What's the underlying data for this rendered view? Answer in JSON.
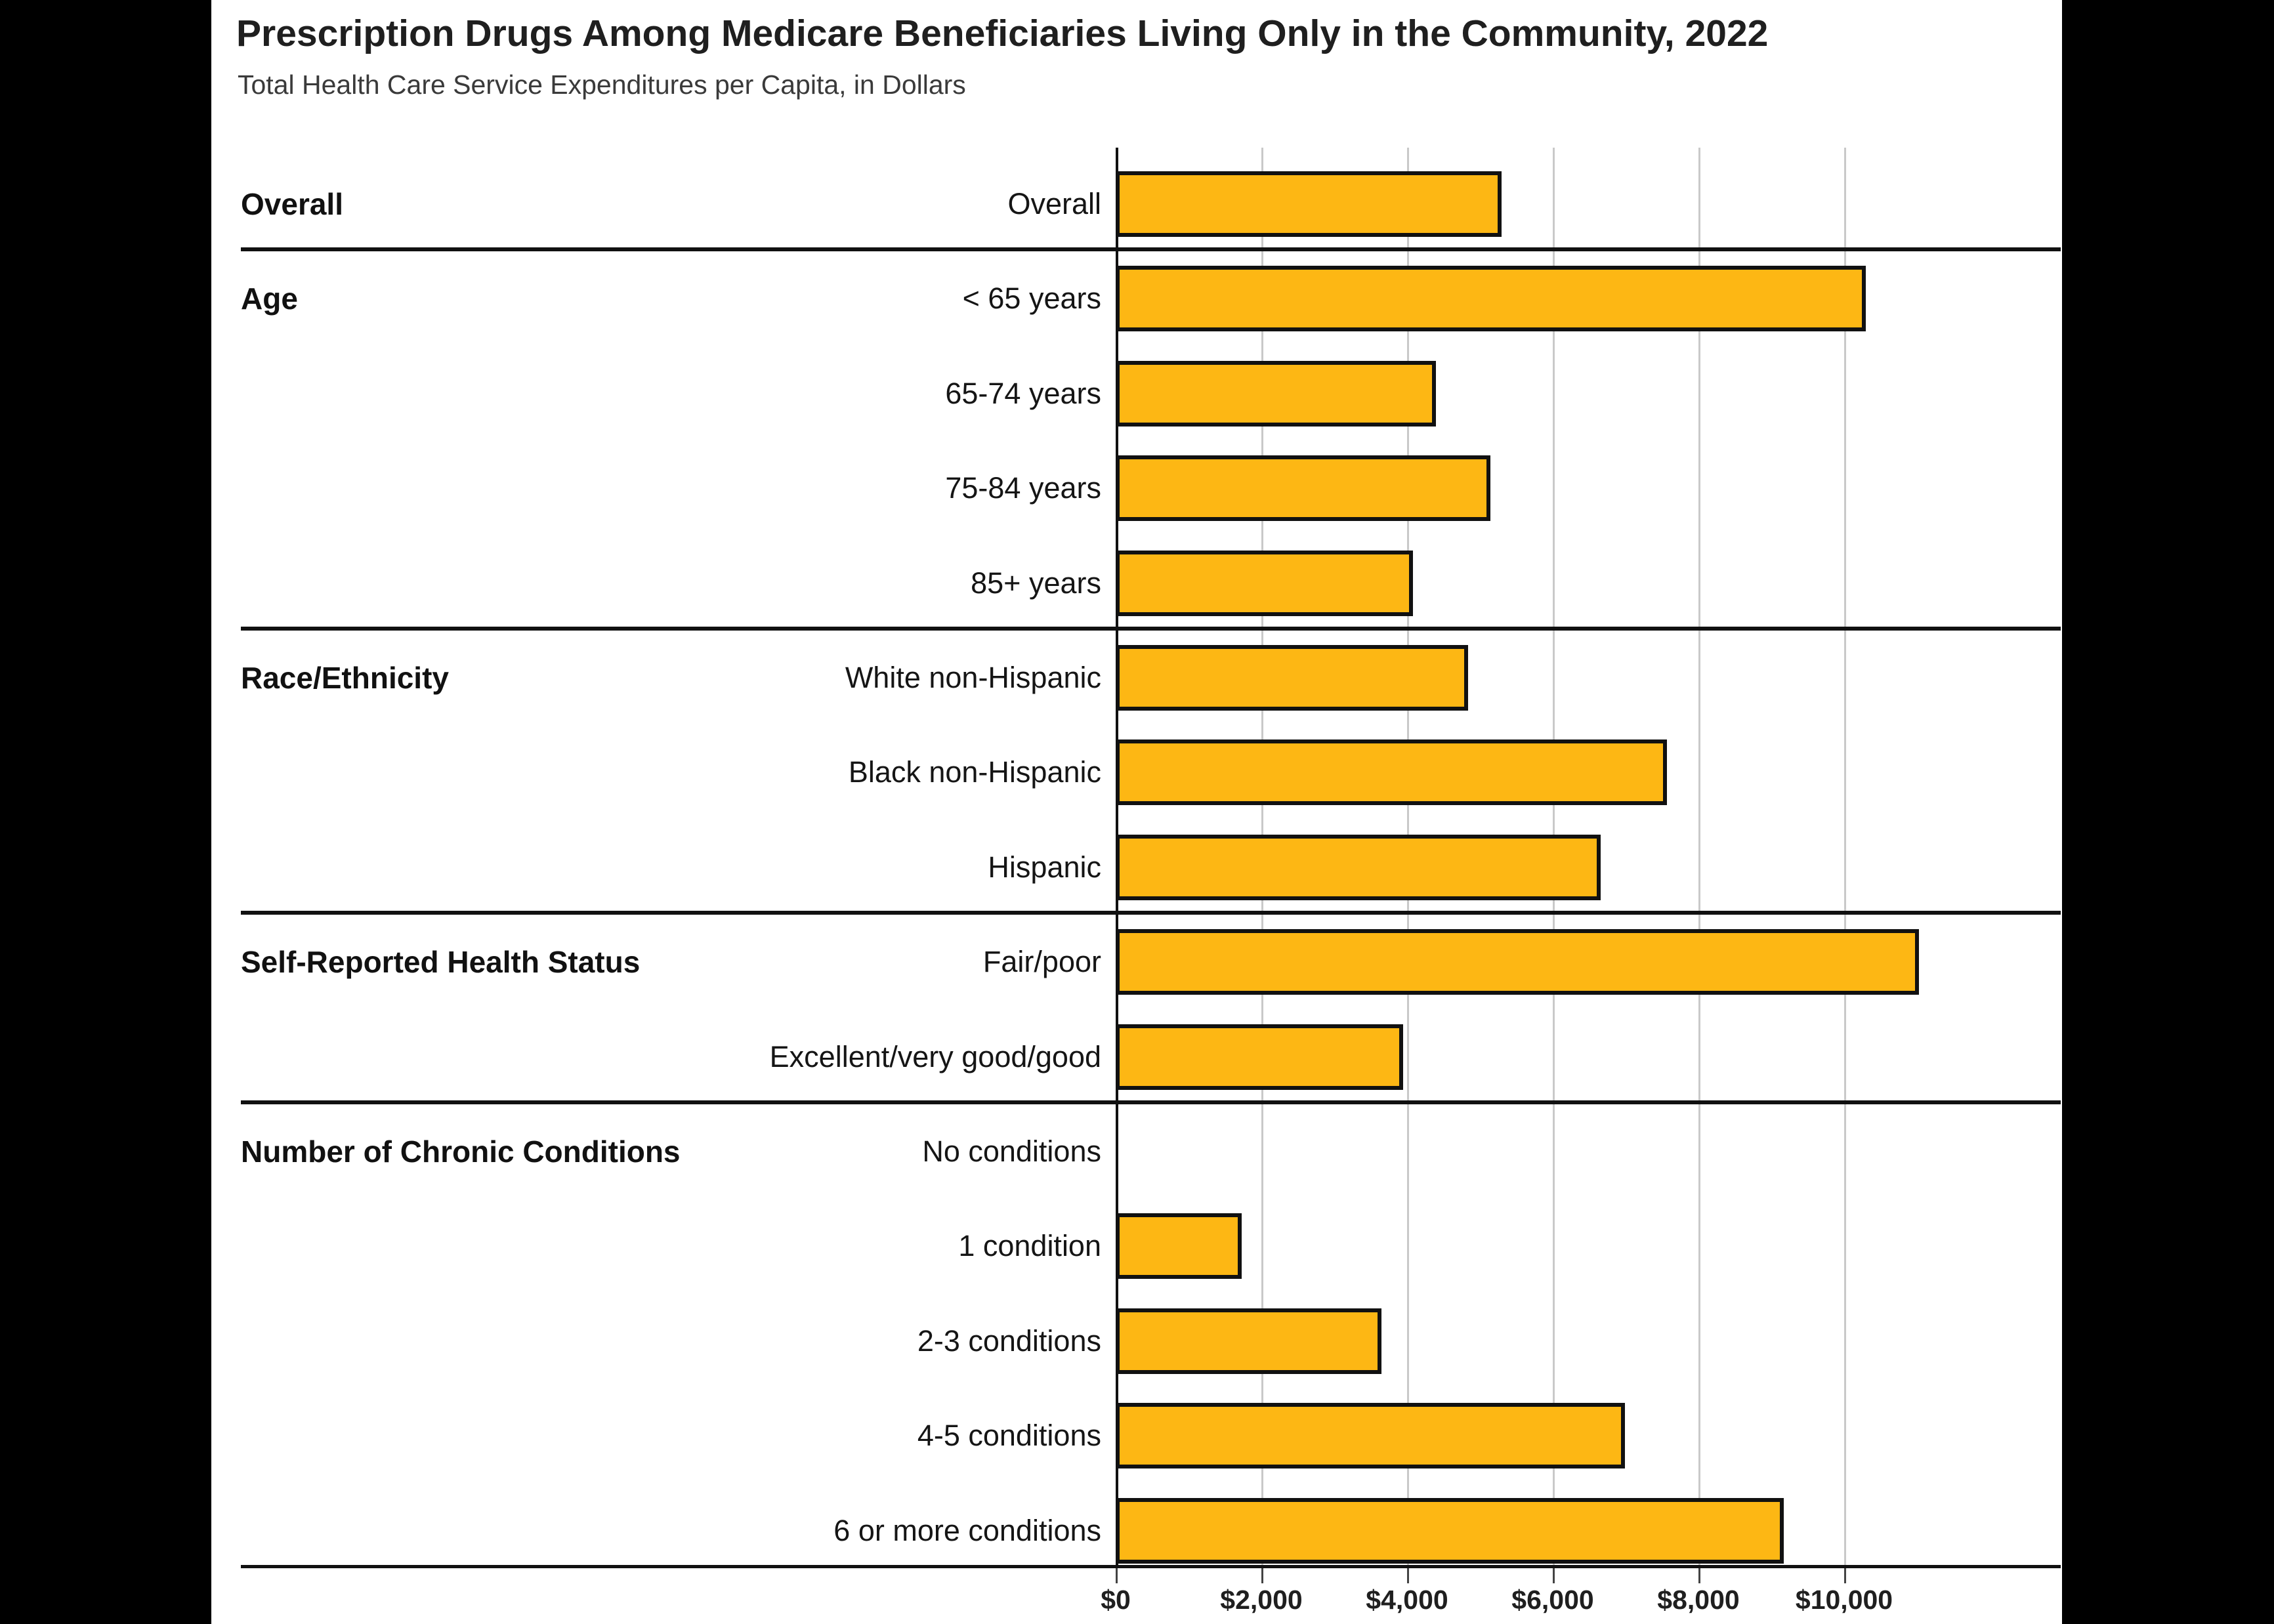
{
  "header": {
    "title": "Prescription Drugs Among Medicare Beneficiaries Living Only in the Community, 2022",
    "subtitle": "Total Health Care Service Expenditures per Capita, in Dollars"
  },
  "colors": {
    "bar_fill": "#FDB714",
    "bar_outline": "#111111",
    "background": "#ffffff",
    "letterbox": "#000000",
    "gridline": "#c9c9c9",
    "text": "#1f1f1f"
  },
  "x_axis": {
    "ticks": [
      "$0",
      "$2,000",
      "$4,000",
      "$6,000",
      "$8,000",
      "$10,000"
    ],
    "tick_values": [
      0,
      2000,
      4000,
      6000,
      8000,
      10000
    ]
  },
  "sections": [
    {
      "header": "Overall",
      "rows": [
        {
          "label": "Overall",
          "value": 5300
        }
      ]
    },
    {
      "header": "Age",
      "rows": [
        {
          "label": "< 65 years",
          "value": 10300
        },
        {
          "label": "65-74 years",
          "value": 4400
        },
        {
          "label": "75-84 years",
          "value": 5140
        },
        {
          "label": "85+ years",
          "value": 4080
        }
      ]
    },
    {
      "header": "Race/Ethnicity",
      "rows": [
        {
          "label": "White non-Hispanic",
          "value": 4840
        },
        {
          "label": "Black non-Hispanic",
          "value": 7570
        },
        {
          "label": "Hispanic",
          "value": 6660
        }
      ]
    },
    {
      "header": "Self-Reported Health Status",
      "rows": [
        {
          "label": "Fair/poor",
          "value": 11030
        },
        {
          "label": "Excellent/very good/good",
          "value": 3950
        }
      ]
    },
    {
      "header": "Number of Chronic Conditions",
      "rows": [
        {
          "label": "No conditions",
          "value": 0
        },
        {
          "label": "1 condition",
          "value": 1730
        },
        {
          "label": "2-3 conditions",
          "value": 3650
        },
        {
          "label": "4-5 conditions",
          "value": 6990
        },
        {
          "label": "6 or more conditions",
          "value": 9170
        }
      ]
    }
  ],
  "chart_data": {
    "type": "bar",
    "orientation": "horizontal",
    "title": "Prescription Drugs Among Medicare Beneficiaries Living Only in the Community, 2022",
    "subtitle": "Total Health Care Service Expenditures per Capita, in Dollars",
    "categories": [
      "Overall",
      "< 65 years",
      "65-74 years",
      "75-84 years",
      "85+ years",
      "White non-Hispanic",
      "Black non-Hispanic",
      "Hispanic",
      "Fair/poor",
      "Excellent/very good/good",
      "No conditions",
      "1 condition",
      "2-3 conditions",
      "4-5 conditions",
      "6 or more conditions"
    ],
    "values": [
      5300,
      10300,
      4400,
      5140,
      4080,
      4840,
      7570,
      6660,
      11030,
      3950,
      0,
      1730,
      3650,
      6990,
      9170
    ],
    "group_labels": [
      "Overall",
      "Age",
      "Race/Ethnicity",
      "Self-Reported Health Status",
      "Number of Chronic Conditions"
    ],
    "xlabel": "Total Health Care Service Expenditures per Capita, in Dollars",
    "ylabel": "",
    "x_tick_labels": [
      "$0",
      "$2,000",
      "$4,000",
      "$6,000",
      "$8,000",
      "$10,000"
    ],
    "xlim": [
      0,
      13000
    ],
    "grid": true,
    "legend": false,
    "bar_color": "#FDB714"
  }
}
